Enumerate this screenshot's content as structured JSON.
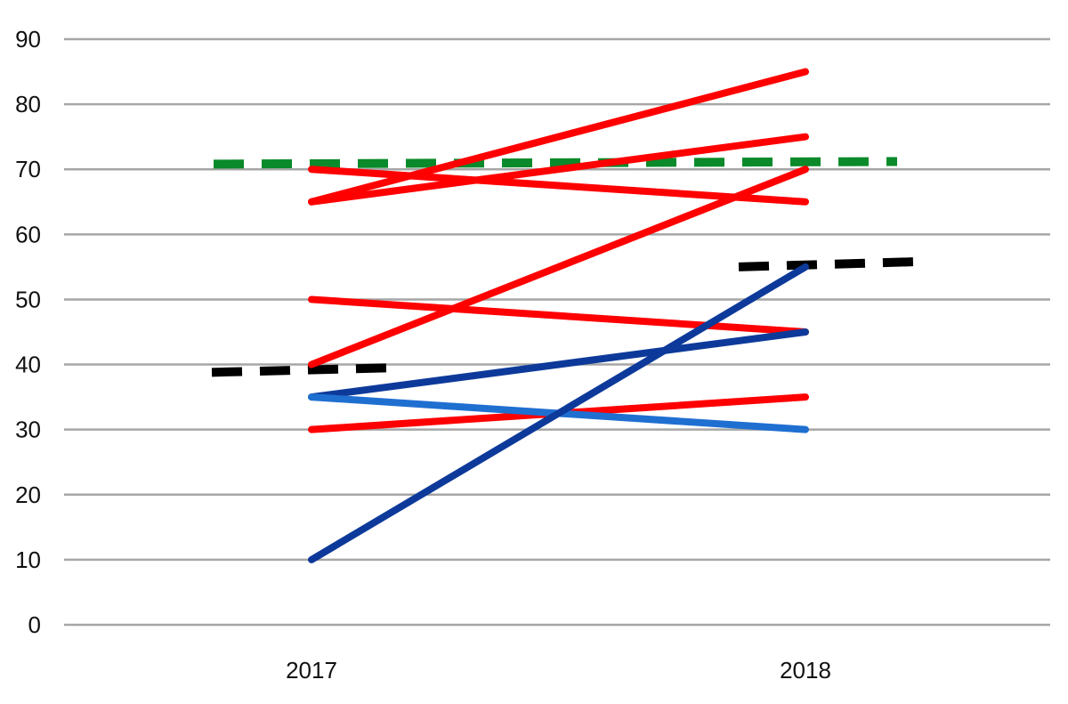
{
  "chart_data": {
    "type": "line",
    "title": "",
    "xlabel": "",
    "ylabel": "",
    "categories": [
      "2017",
      "2018"
    ],
    "ylim": [
      0,
      90
    ],
    "yticks": [
      "0",
      "10",
      "20",
      "30",
      "40",
      "50",
      "60",
      "70",
      "80",
      "90"
    ],
    "grid": true,
    "legend": "none",
    "series": [
      {
        "color": "#ff0000",
        "values": [
          65,
          85
        ]
      },
      {
        "color": "#ff0000",
        "values": [
          65,
          75
        ]
      },
      {
        "color": "#ff0000",
        "values": [
          70,
          65
        ]
      },
      {
        "color": "#ff0000",
        "values": [
          40,
          70
        ]
      },
      {
        "color": "#ff0000",
        "values": [
          50,
          45
        ]
      },
      {
        "color": "#ff0000",
        "values": [
          30,
          35
        ]
      },
      {
        "color": "#0d3a9a",
        "values": [
          35,
          45
        ]
      },
      {
        "color": "#1f6fd1",
        "values": [
          35,
          30
        ]
      },
      {
        "color": "#0d3a9a",
        "values": [
          10,
          55
        ]
      }
    ],
    "reference_lines": [
      {
        "color": "#0a8a2a",
        "style": "dashed",
        "values": [
          70.8,
          71.2
        ]
      },
      {
        "color": "#000000",
        "style": "dashed",
        "values": [
          38.8,
          39.5
        ]
      },
      {
        "color": "#000000",
        "style": "dashed",
        "values": [
          55.0,
          55.8
        ]
      }
    ]
  }
}
